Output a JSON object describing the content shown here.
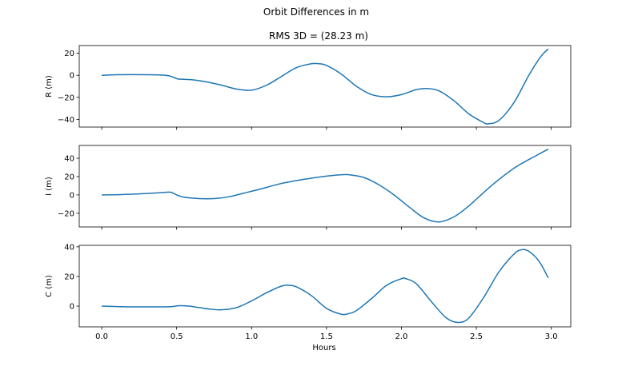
{
  "figure": {
    "suptitle": "Orbit Differences in m",
    "subtitle": "RMS 3D = (28.23 m)",
    "xlabel": "Hours",
    "line_color": "#1f77b4"
  },
  "chart_data": [
    {
      "type": "line",
      "title": "RMS 3D = (28.23 m)",
      "ylabel": "R (m)",
      "xlabel": "",
      "xlim": [
        -0.15,
        3.13
      ],
      "ylim": [
        -47,
        27
      ],
      "yticks": [
        20,
        0,
        -20,
        -40
      ],
      "xticks": [
        0.0,
        0.5,
        1.0,
        1.5,
        2.0,
        2.5,
        3.0
      ],
      "x": [
        0.0,
        0.1,
        0.2,
        0.3,
        0.4,
        0.45,
        0.5,
        0.52,
        0.6,
        0.7,
        0.8,
        0.9,
        1.0,
        1.1,
        1.2,
        1.3,
        1.4,
        1.45,
        1.5,
        1.6,
        1.7,
        1.8,
        1.9,
        2.0,
        2.1,
        2.17,
        2.25,
        2.35,
        2.45,
        2.55,
        2.58,
        2.65,
        2.75,
        2.85,
        2.93,
        2.98
      ],
      "series": [
        {
          "values": [
            0.0,
            0.5,
            0.6,
            0.5,
            0.2,
            -0.5,
            -3.0,
            -3.5,
            -4.0,
            -6.0,
            -9.0,
            -12.5,
            -13.5,
            -9.0,
            -1.0,
            7.0,
            10.5,
            10.5,
            9.0,
            1.0,
            -10.0,
            -17.5,
            -19.5,
            -17.5,
            -13.0,
            -12.0,
            -14.0,
            -23.0,
            -35.0,
            -43.0,
            -44.0,
            -41.0,
            -25.0,
            0.0,
            17.0,
            24.0
          ]
        }
      ]
    },
    {
      "type": "line",
      "ylabel": "I (m)",
      "xlabel": "",
      "xlim": [
        -0.15,
        3.13
      ],
      "ylim": [
        -35,
        54
      ],
      "yticks": [
        40,
        20,
        0,
        -20
      ],
      "xticks": [
        0.0,
        0.5,
        1.0,
        1.5,
        2.0,
        2.5,
        3.0
      ],
      "x": [
        0.0,
        0.1,
        0.2,
        0.3,
        0.4,
        0.46,
        0.5,
        0.55,
        0.65,
        0.75,
        0.85,
        0.95,
        1.05,
        1.2,
        1.35,
        1.5,
        1.6,
        1.65,
        1.75,
        1.85,
        1.95,
        2.05,
        2.15,
        2.25,
        2.35,
        2.45,
        2.6,
        2.75,
        2.9,
        2.98
      ],
      "series": [
        {
          "values": [
            0.0,
            0.2,
            0.8,
            1.5,
            2.5,
            3.0,
            0.0,
            -2.5,
            -4.0,
            -4.0,
            -2.0,
            2.0,
            6.0,
            12.5,
            17.0,
            20.5,
            22.0,
            22.0,
            19.0,
            11.0,
            0.0,
            -13.0,
            -25.0,
            -29.5,
            -24.0,
            -12.0,
            10.0,
            29.0,
            43.0,
            50.0
          ]
        }
      ]
    },
    {
      "type": "line",
      "ylabel": "C (m)",
      "xlabel": "Hours",
      "xlim": [
        -0.15,
        3.13
      ],
      "ylim": [
        -14,
        41
      ],
      "yticks": [
        40,
        20,
        0
      ],
      "xticks": [
        0.0,
        0.5,
        1.0,
        1.5,
        2.0,
        2.5,
        3.0
      ],
      "x": [
        0.0,
        0.1,
        0.2,
        0.3,
        0.4,
        0.47,
        0.52,
        0.58,
        0.65,
        0.72,
        0.8,
        0.9,
        1.0,
        1.1,
        1.2,
        1.25,
        1.3,
        1.4,
        1.5,
        1.6,
        1.65,
        1.7,
        1.8,
        1.9,
        2.0,
        2.03,
        2.1,
        2.2,
        2.3,
        2.38,
        2.45,
        2.55,
        2.65,
        2.75,
        2.8,
        2.85,
        2.92,
        2.98
      ],
      "series": [
        {
          "values": [
            0.0,
            -0.3,
            -0.5,
            -0.5,
            -0.5,
            -0.3,
            0.3,
            0.0,
            -1.0,
            -2.0,
            -2.5,
            -1.0,
            3.5,
            9.0,
            13.5,
            14.0,
            13.0,
            7.0,
            -1.5,
            -5.5,
            -5.0,
            -3.0,
            5.0,
            14.0,
            18.5,
            18.5,
            15.0,
            3.0,
            -8.0,
            -11.0,
            -8.0,
            6.0,
            23.0,
            35.0,
            38.0,
            37.0,
            30.0,
            19.0
          ]
        }
      ]
    }
  ]
}
